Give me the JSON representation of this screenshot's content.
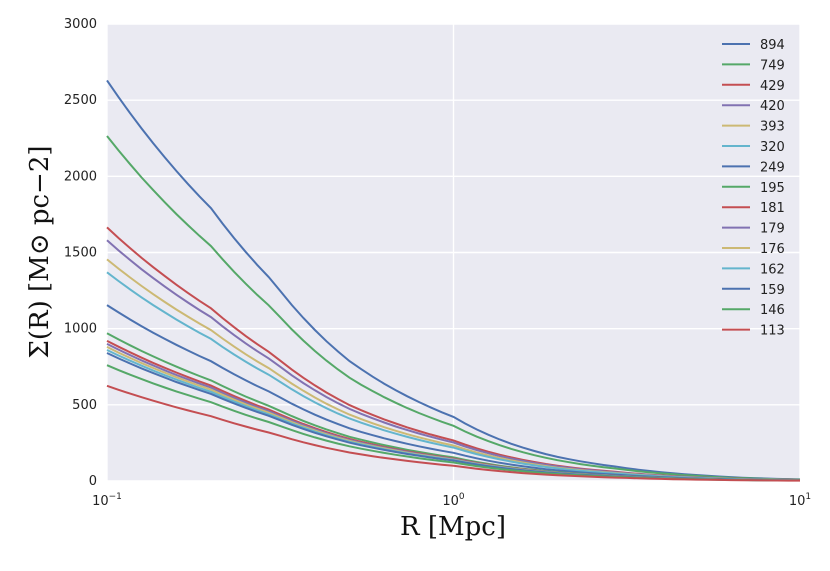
{
  "chart_data": {
    "type": "line",
    "xscale": "log",
    "xlim": [
      0.1,
      10
    ],
    "ylim": [
      0,
      3000
    ],
    "grid": true,
    "legend_position": "top-right",
    "xlabel": "R [Mpc]",
    "ylabel": "Σ(R) [M⊙ pc−2]",
    "yticks": [
      "0",
      "500",
      "1000",
      "1500",
      "2000",
      "2500",
      "3000"
    ],
    "xticks": [
      {
        "value": 0.1,
        "base": "10",
        "exp": "−1"
      },
      {
        "value": 1,
        "base": "10",
        "exp": "0"
      },
      {
        "value": 10,
        "base": "10",
        "exp": "1"
      }
    ],
    "series": [
      {
        "name": "894",
        "color": "#4C72B0",
        "y_at_01": 2630
      },
      {
        "name": "749",
        "color": "#55A868",
        "y_at_01": 2265
      },
      {
        "name": "429",
        "color": "#C44E52",
        "y_at_01": 1665
      },
      {
        "name": "420",
        "color": "#8172B2",
        "y_at_01": 1580
      },
      {
        "name": "393",
        "color": "#CCB974",
        "y_at_01": 1455
      },
      {
        "name": "320",
        "color": "#64B5CD",
        "y_at_01": 1370
      },
      {
        "name": "249",
        "color": "#4C72B0",
        "y_at_01": 1155
      },
      {
        "name": "195",
        "color": "#55A868",
        "y_at_01": 970
      },
      {
        "name": "181",
        "color": "#C44E52",
        "y_at_01": 920
      },
      {
        "name": "179",
        "color": "#8172B2",
        "y_at_01": 900
      },
      {
        "name": "176",
        "color": "#CCB974",
        "y_at_01": 880
      },
      {
        "name": "162",
        "color": "#64B5CD",
        "y_at_01": 860
      },
      {
        "name": "159",
        "color": "#4C72B0",
        "y_at_01": 840
      },
      {
        "name": "146",
        "color": "#55A868",
        "y_at_01": 760
      },
      {
        "name": "113",
        "color": "#C44E52",
        "y_at_01": 625
      }
    ],
    "profile_shape": {
      "x": [
        0.1,
        0.2,
        0.3,
        0.5,
        1,
        2,
        3,
        5,
        10
      ],
      "relative_y": [
        1.0,
        0.68,
        0.5,
        0.3,
        0.16,
        0.06,
        0.035,
        0.015,
        0.004
      ]
    }
  }
}
